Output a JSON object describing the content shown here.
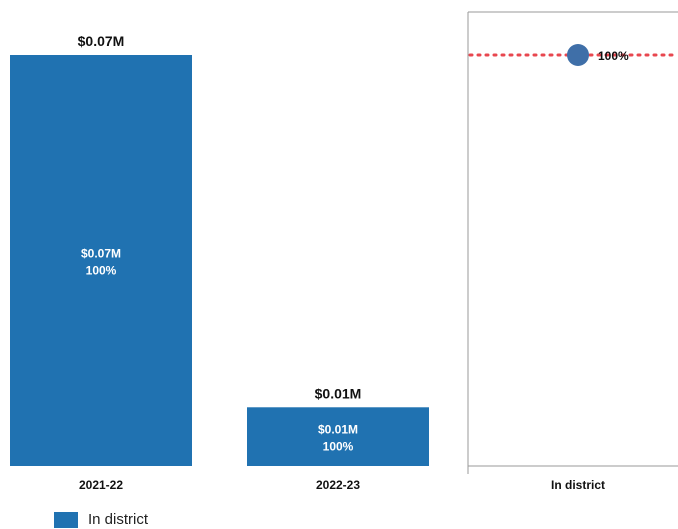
{
  "chart_data": [
    {
      "type": "bar",
      "categories": [
        "2021-22",
        "2022-23"
      ],
      "series": [
        {
          "name": "In district",
          "values": [
            0.07,
            0.01
          ],
          "value_labels": [
            "$0.07M",
            "$0.01M"
          ],
          "share_labels": [
            "100%",
            "100%"
          ]
        }
      ],
      "total_labels": [
        "$0.07M",
        "$0.01M"
      ],
      "ylim": [
        0,
        0.07
      ],
      "grid": false,
      "legend": "bottom-left",
      "bar_color": "#2072b1"
    },
    {
      "type": "scatter",
      "categories": [
        "In district"
      ],
      "values": [
        100
      ],
      "value_labels": [
        "100%"
      ],
      "ylim": [
        0,
        100
      ],
      "reference_line": 100,
      "reference_line_color": "#e8474f",
      "marker_color": "#3f6fa8",
      "grid": false
    }
  ],
  "legend": {
    "label": "In district",
    "color": "#2072b1"
  }
}
